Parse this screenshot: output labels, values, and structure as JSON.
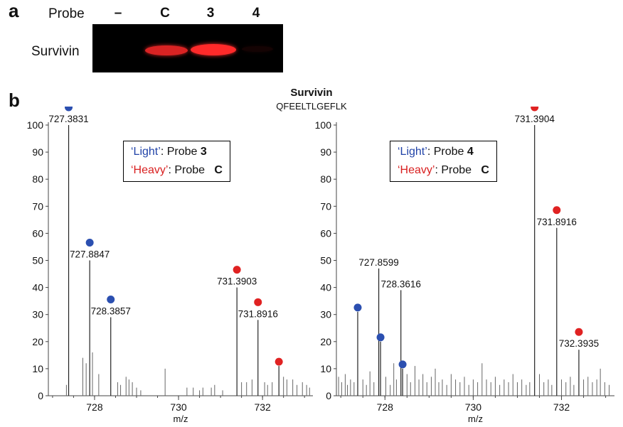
{
  "panel_a": {
    "letter": "a",
    "probe_label": "Probe",
    "lanes": [
      "–",
      "C",
      "3",
      "4"
    ],
    "row_label": "Survivin",
    "band_intensity": [
      0,
      0.85,
      1.0,
      0.08
    ]
  },
  "panel_b": {
    "letter": "b",
    "title": "Survivin",
    "subtitle": "QFEELTLGEFLK"
  },
  "colors": {
    "light": "#2b4fb0",
    "heavy": "#e02222",
    "band": "#ff2a2a"
  },
  "chart_data": [
    {
      "type": "bar",
      "xlabel": "m/z",
      "ylabel": "",
      "xlim": [
        726.9,
        733.2
      ],
      "ylim": [
        0,
        100
      ],
      "xticks": [
        728,
        730,
        732
      ],
      "yticks": [
        0,
        10,
        20,
        30,
        40,
        50,
        60,
        70,
        80,
        90,
        100
      ],
      "legend": {
        "light_label": "‘Light’",
        "light_text": ": Probe ",
        "light_probe": "3",
        "heavy_label": "‘Heavy’",
        "heavy_text": ": Probe ",
        "heavy_probe": "C"
      },
      "peaks": [
        {
          "mz": 727.3831,
          "intensity": 100,
          "label": "727.3831",
          "marker": "light"
        },
        {
          "mz": 727.8847,
          "intensity": 50,
          "label": "727.8847",
          "marker": "light"
        },
        {
          "mz": 728.3857,
          "intensity": 29,
          "label": "728.3857",
          "marker": "light"
        },
        {
          "mz": 731.3903,
          "intensity": 40,
          "label": "731.3903",
          "marker": "heavy"
        },
        {
          "mz": 731.8916,
          "intensity": 28,
          "label": "731.8916",
          "marker": "heavy"
        },
        {
          "mz": 732.39,
          "intensity": 11,
          "label": "",
          "marker": "heavy"
        }
      ],
      "noise": [
        [
          727.33,
          4
        ],
        [
          727.72,
          14
        ],
        [
          727.8,
          12
        ],
        [
          727.95,
          16
        ],
        [
          728.1,
          8
        ],
        [
          728.55,
          5
        ],
        [
          728.62,
          4
        ],
        [
          728.75,
          7
        ],
        [
          728.82,
          6
        ],
        [
          728.9,
          5
        ],
        [
          729.0,
          3
        ],
        [
          729.1,
          2
        ],
        [
          729.68,
          10
        ],
        [
          730.2,
          3
        ],
        [
          730.35,
          3
        ],
        [
          730.5,
          2
        ],
        [
          730.58,
          3
        ],
        [
          730.78,
          3
        ],
        [
          730.86,
          4
        ],
        [
          731.05,
          2
        ],
        [
          731.5,
          5
        ],
        [
          731.62,
          5
        ],
        [
          731.75,
          6
        ],
        [
          732.05,
          5
        ],
        [
          732.12,
          4
        ],
        [
          732.23,
          5
        ],
        [
          732.5,
          7
        ],
        [
          732.58,
          6
        ],
        [
          732.72,
          6
        ],
        [
          732.82,
          4
        ],
        [
          732.95,
          5
        ],
        [
          733.05,
          4
        ],
        [
          733.12,
          3
        ]
      ]
    },
    {
      "type": "bar",
      "xlabel": "m/z",
      "ylabel": "",
      "xlim": [
        726.9,
        733.2
      ],
      "ylim": [
        0,
        100
      ],
      "xticks": [
        728,
        730,
        732
      ],
      "yticks": [
        0,
        10,
        20,
        30,
        40,
        50,
        60,
        70,
        80,
        90,
        100
      ],
      "legend": {
        "light_label": "‘Light’",
        "light_text": ": Probe ",
        "light_probe": "4",
        "heavy_label": "‘Heavy’",
        "heavy_text": ": Probe ",
        "heavy_probe": "C"
      },
      "peaks": [
        {
          "mz": 727.3831,
          "intensity": 31,
          "label": "",
          "marker": "light"
        },
        {
          "mz": 727.8599,
          "intensity": 47,
          "label": "727.8599",
          "marker": ""
        },
        {
          "mz": 728.3616,
          "intensity": 39,
          "label": "728.3616",
          "marker": ""
        },
        {
          "mz": 727.9,
          "intensity": 20,
          "label": "",
          "marker": "light"
        },
        {
          "mz": 728.4,
          "intensity": 10,
          "label": "",
          "marker": "light"
        },
        {
          "mz": 731.3904,
          "intensity": 100,
          "label": "731.3904",
          "marker": "heavy"
        },
        {
          "mz": 731.8916,
          "intensity": 62,
          "label": "731.8916",
          "marker": "heavy"
        },
        {
          "mz": 732.3935,
          "intensity": 17,
          "label": "732.3935",
          "marker": "heavy"
        }
      ],
      "noise": [
        [
          726.95,
          7
        ],
        [
          727.02,
          5
        ],
        [
          727.1,
          8
        ],
        [
          727.15,
          4
        ],
        [
          727.22,
          6
        ],
        [
          727.3,
          5
        ],
        [
          727.5,
          6
        ],
        [
          727.58,
          4
        ],
        [
          727.66,
          9
        ],
        [
          727.75,
          5
        ],
        [
          728.02,
          7
        ],
        [
          728.12,
          4
        ],
        [
          728.2,
          12
        ],
        [
          728.26,
          6
        ],
        [
          728.5,
          8
        ],
        [
          728.58,
          5
        ],
        [
          728.68,
          11
        ],
        [
          728.77,
          6
        ],
        [
          728.86,
          8
        ],
        [
          728.95,
          5
        ],
        [
          729.05,
          7
        ],
        [
          729.14,
          10
        ],
        [
          729.22,
          5
        ],
        [
          729.3,
          6
        ],
        [
          729.4,
          4
        ],
        [
          729.5,
          8
        ],
        [
          729.6,
          6
        ],
        [
          729.7,
          5
        ],
        [
          729.8,
          7
        ],
        [
          729.9,
          4
        ],
        [
          730.0,
          6
        ],
        [
          730.1,
          5
        ],
        [
          730.2,
          12
        ],
        [
          730.3,
          6
        ],
        [
          730.4,
          5
        ],
        [
          730.5,
          7
        ],
        [
          730.6,
          4
        ],
        [
          730.7,
          6
        ],
        [
          730.8,
          5
        ],
        [
          730.9,
          8
        ],
        [
          731.0,
          5
        ],
        [
          731.1,
          6
        ],
        [
          731.2,
          4
        ],
        [
          731.28,
          5
        ],
        [
          731.5,
          8
        ],
        [
          731.6,
          5
        ],
        [
          731.7,
          6
        ],
        [
          731.78,
          4
        ],
        [
          732.0,
          6
        ],
        [
          732.1,
          5
        ],
        [
          732.2,
          7
        ],
        [
          732.28,
          4
        ],
        [
          732.5,
          6
        ],
        [
          732.6,
          7
        ],
        [
          732.7,
          5
        ],
        [
          732.8,
          6
        ],
        [
          732.88,
          10
        ],
        [
          732.98,
          5
        ],
        [
          733.08,
          4
        ]
      ]
    }
  ]
}
